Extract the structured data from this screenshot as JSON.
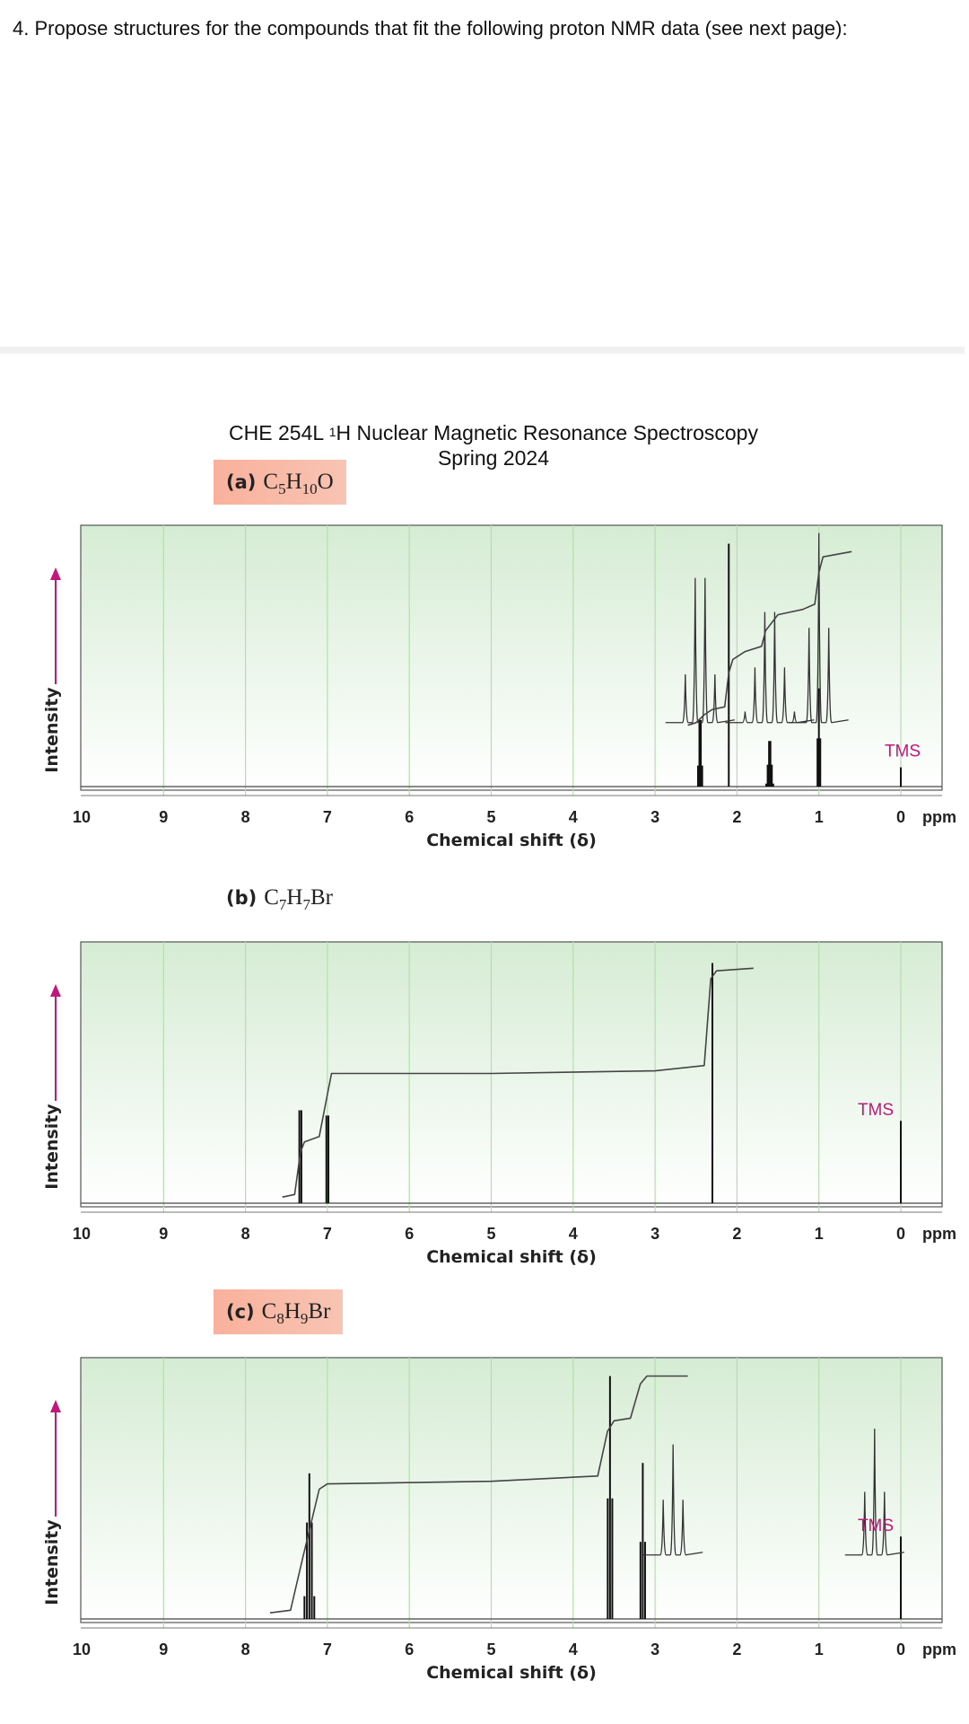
{
  "question": "4.  Propose structures for the compounds that fit the following proton NMR data (see next page):",
  "header": {
    "line1_pre": "CHE 254L ",
    "line1_sup": "1",
    "line1_post": "H Nuclear Magnetic Resonance Spectroscopy",
    "line2": "Spring 2024"
  },
  "colors": {
    "accent": "#c2187a",
    "grid": "#b7dcb0",
    "panel_top": "#d6ecd4",
    "panel_bottom": "#ffffff",
    "label_bg": "#f9b19c"
  },
  "chart_data": [
    {
      "type": "line",
      "title_part": "(a)",
      "formula": {
        "el1": "C",
        "n1": "5",
        "el2": "H",
        "n2": "10",
        "el3": "O",
        "n3": ""
      },
      "label_highlight": true,
      "xlabel": "Chemical shift (δ)",
      "ylabel": "Intensity",
      "xlim": [
        10,
        0
      ],
      "ticks": [
        "10",
        "9",
        "8",
        "7",
        "6",
        "5",
        "4",
        "3",
        "2",
        "1",
        "0"
      ],
      "unit": "ppm",
      "reference": "TMS",
      "peaks": [
        {
          "ppm": 2.45,
          "h": 0.26,
          "n": 4,
          "j": 0.017
        },
        {
          "ppm": 2.1,
          "h": 0.93,
          "n": 1,
          "j": 0
        },
        {
          "ppm": 1.6,
          "h": 0.18,
          "n": 6,
          "j": 0.017
        },
        {
          "ppm": 1.0,
          "h": 0.38,
          "n": 3,
          "j": 0.017
        },
        {
          "ppm": 0.0,
          "h": 0.08,
          "n": 1,
          "j": 0
        }
      ],
      "expansions": [
        {
          "center_ppm": 2.45,
          "n": 4,
          "h": 0.55
        },
        {
          "center_ppm": 1.6,
          "n": 6,
          "h": 0.42
        },
        {
          "center_ppm": 1.0,
          "n": 3,
          "h": 0.72
        }
      ],
      "integral": [
        [
          2.6,
          0.24
        ],
        [
          2.5,
          0.25
        ],
        [
          2.4,
          0.28
        ],
        [
          2.3,
          0.3
        ],
        [
          2.15,
          0.31
        ],
        [
          2.1,
          0.44
        ],
        [
          2.05,
          0.49
        ],
        [
          1.9,
          0.52
        ],
        [
          1.7,
          0.54
        ],
        [
          1.65,
          0.6
        ],
        [
          1.5,
          0.66
        ],
        [
          1.2,
          0.68
        ],
        [
          1.05,
          0.7
        ],
        [
          1.0,
          0.82
        ],
        [
          0.95,
          0.88
        ],
        [
          0.6,
          0.9
        ]
      ]
    },
    {
      "type": "line",
      "title_part": "(b)",
      "formula": {
        "el1": "C",
        "n1": "7",
        "el2": "H",
        "n2": "7",
        "el3": "Br",
        "n3": ""
      },
      "label_highlight": false,
      "xlabel": "Chemical shift (δ)",
      "ylabel": "Intensity",
      "xlim": [
        10,
        0
      ],
      "ticks": [
        "10",
        "9",
        "8",
        "7",
        "6",
        "5",
        "4",
        "3",
        "2",
        "1",
        "0"
      ],
      "unit": "ppm",
      "reference": "TMS",
      "peaks": [
        {
          "ppm": 7.33,
          "h": 0.36,
          "n": 2,
          "j": 0.025
        },
        {
          "ppm": 7.0,
          "h": 0.34,
          "n": 2,
          "j": 0.025
        },
        {
          "ppm": 2.3,
          "h": 0.92,
          "n": 1,
          "j": 0
        },
        {
          "ppm": 0.0,
          "h": 0.32,
          "n": 1,
          "j": 0
        }
      ],
      "expansions": [],
      "integral": [
        [
          7.55,
          0.03
        ],
        [
          7.4,
          0.04
        ],
        [
          7.33,
          0.2
        ],
        [
          7.28,
          0.24
        ],
        [
          7.1,
          0.26
        ],
        [
          7.0,
          0.42
        ],
        [
          6.95,
          0.5
        ],
        [
          5.0,
          0.5
        ],
        [
          3.0,
          0.51
        ],
        [
          2.4,
          0.53
        ],
        [
          2.32,
          0.86
        ],
        [
          2.25,
          0.89
        ],
        [
          1.8,
          0.9
        ]
      ]
    },
    {
      "type": "line",
      "title_part": "(c)",
      "formula": {
        "el1": "C",
        "n1": "8",
        "el2": "H",
        "n2": "9",
        "el3": "Br",
        "n3": ""
      },
      "label_highlight": true,
      "xlabel": "Chemical shift (δ)",
      "ylabel": "Intensity",
      "xlim": [
        10,
        0
      ],
      "ticks": [
        "10",
        "9",
        "8",
        "7",
        "6",
        "5",
        "4",
        "3",
        "2",
        "1",
        "0"
      ],
      "unit": "ppm",
      "reference": "TMS",
      "peaks": [
        {
          "ppm": 7.22,
          "h": 0.56,
          "n": 5,
          "j": 0.03
        },
        {
          "ppm": 3.55,
          "h": 0.93,
          "n": 3,
          "j": 0.028
        },
        {
          "ppm": 3.15,
          "h": 0.6,
          "n": 3,
          "j": 0.028
        },
        {
          "ppm": 0.0,
          "h": 0.32,
          "n": 1,
          "j": 0
        }
      ],
      "expansions": [
        {
          "center_ppm": 2.78,
          "n": 3,
          "h": 0.42
        },
        {
          "center_ppm": 0.32,
          "n": 3,
          "h": 0.48
        }
      ],
      "integral": [
        [
          7.7,
          0.03
        ],
        [
          7.45,
          0.04
        ],
        [
          7.3,
          0.24
        ],
        [
          7.1,
          0.5
        ],
        [
          7.0,
          0.52
        ],
        [
          5.0,
          0.53
        ],
        [
          3.7,
          0.55
        ],
        [
          3.58,
          0.72
        ],
        [
          3.5,
          0.76
        ],
        [
          3.3,
          0.77
        ],
        [
          3.18,
          0.9
        ],
        [
          3.1,
          0.93
        ],
        [
          2.6,
          0.93
        ]
      ]
    }
  ]
}
